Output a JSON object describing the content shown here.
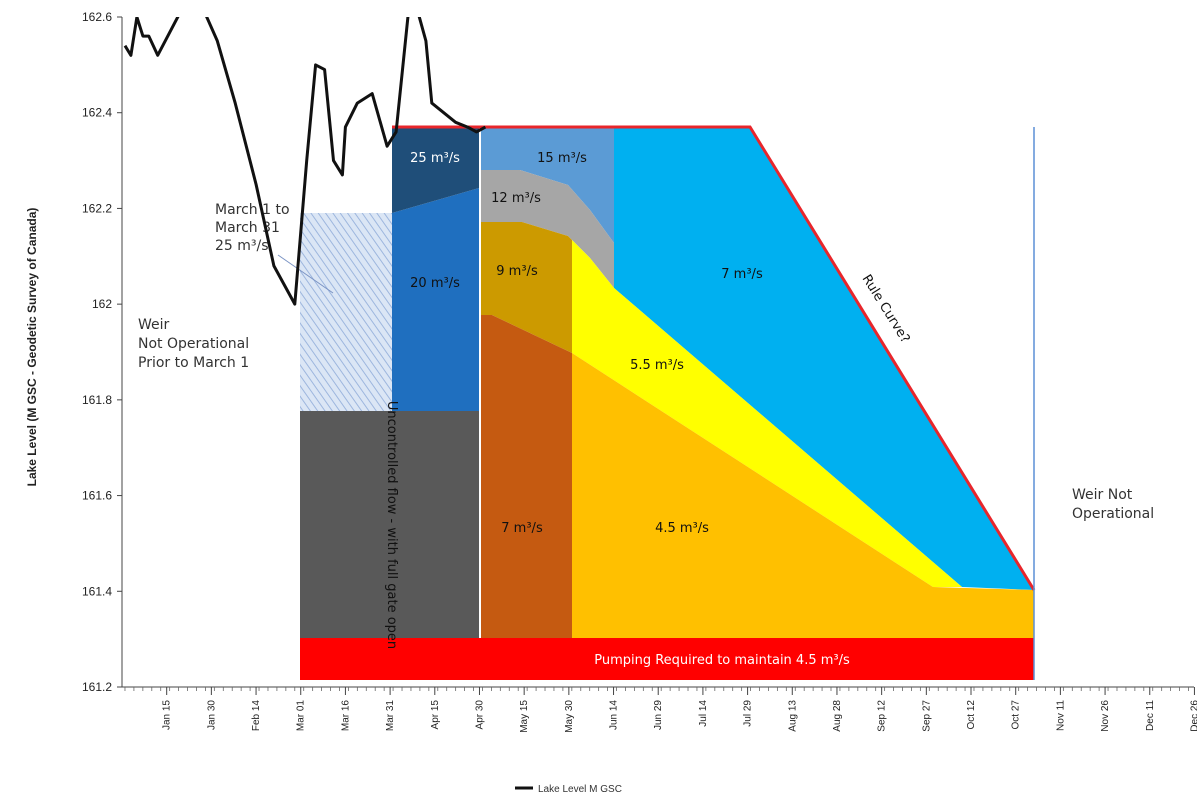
{
  "chart_data": {
    "type": "line",
    "ylabel": "Lake Level (M GSC - Geodetic Survey of Canada)",
    "ylim": [
      161.2,
      162.6
    ],
    "yticks": [
      "162.6",
      "162.4",
      "162.2",
      "162",
      "161.8",
      "161.6",
      "161.4",
      "161.2"
    ],
    "xticks": [
      "Jan 15",
      "Jan 30",
      "Feb 14",
      "Mar 01",
      "Mar 16",
      "Mar 31",
      "Apr 15",
      "Apr 30",
      "May 15",
      "May 30",
      "Jun 14",
      "Jun 29",
      "Jul 14",
      "Jul 29",
      "Aug 13",
      "Aug 28",
      "Sep 12",
      "Sep 27",
      "Oct 12",
      "Oct 27",
      "Nov 11",
      "Nov 26",
      "Dec 11",
      "Dec 26"
    ],
    "legend": {
      "position": "bottom-center",
      "entries": [
        "Lake Level M GSC"
      ]
    },
    "series": [
      {
        "name": "Lake Level M GSC",
        "color": "#111111",
        "x": [
          "Jan 01",
          "Jan 03",
          "Jan 05",
          "Jan 07",
          "Jan 09",
          "Jan 12",
          "Jan 24",
          "Feb 01",
          "Feb 07",
          "Feb 14",
          "Feb 20",
          "Feb 27",
          "Mar 03",
          "Mar 06",
          "Mar 09",
          "Mar 12",
          "Mar 15",
          "Mar 16",
          "Mar 20",
          "Mar 25",
          "Mar 30",
          "Apr 02",
          "Apr 07",
          "Apr 12",
          "Apr 14",
          "Apr 18",
          "Apr 22",
          "Apr 26",
          "Apr 29",
          "May 02"
        ],
        "y": [
          162.54,
          162.52,
          162.6,
          162.56,
          162.56,
          162.52,
          162.8,
          162.55,
          162.42,
          162.25,
          162.08,
          162.0,
          162.3,
          162.5,
          162.49,
          162.3,
          162.27,
          162.37,
          162.42,
          162.44,
          162.33,
          162.36,
          162.8,
          162.55,
          162.42,
          162.4,
          162.38,
          162.37,
          162.36,
          162.37
        ]
      }
    ],
    "zones": [
      {
        "label": "25 m³/s",
        "color": "#1F4E79"
      },
      {
        "label": "20 m³/s",
        "color": "#1F6FBF"
      },
      {
        "label": "15 m³/s",
        "color": "#5B9BD5"
      },
      {
        "label": "12 m³/s",
        "color": "#A6A6A6"
      },
      {
        "label": "9 m³/s",
        "color": "#CC9A00"
      },
      {
        "label": "7 m³/s",
        "color": "#00B0F0"
      },
      {
        "label": "5.5 m³/s",
        "color": "#FFFF00"
      },
      {
        "label": "7 m³/s",
        "color": "#C55A11"
      },
      {
        "label": "4.5 m³/s",
        "color": "#FFC000"
      },
      {
        "label": "Pumping Required to maintain 4.5 m³/s",
        "color": "#FF0000"
      },
      {
        "label": "Uncontrolled flow - with full gate open",
        "color": "#595959"
      }
    ],
    "annotations": {
      "march_note": [
        "March 1 to",
        "March 31",
        "25 m³/s"
      ],
      "weir_prior": [
        "Weir",
        "Not Operational",
        "Prior to March 1"
      ],
      "weir_after": [
        "Weir Not",
        "Operational"
      ],
      "rule_curve": "Rule Curve?"
    },
    "colors": {
      "rule_curve": "#E8262B",
      "weir_line": "#5B8FD6"
    }
  }
}
